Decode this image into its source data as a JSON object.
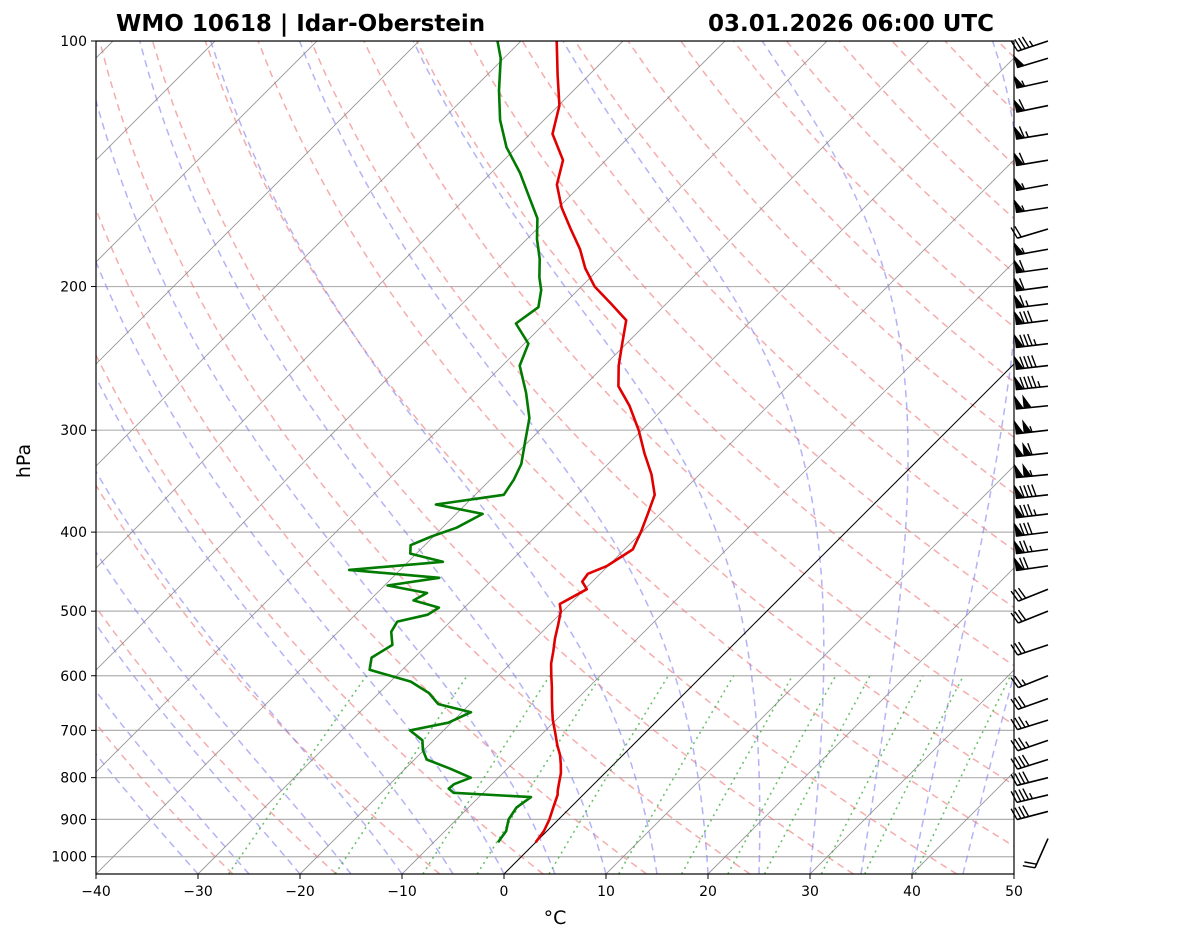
{
  "chart_data": {
    "type": "line",
    "title": "WMO 10618 | Idar-Oberstein",
    "subtitle": "03.01.2026 06:00 UTC",
    "xlabel": "°C",
    "ylabel": "hPa",
    "xlim": [
      -40,
      50
    ],
    "ylim": [
      1050,
      100
    ],
    "x_ticks": [
      -40,
      -30,
      -20,
      -10,
      0,
      10,
      20,
      30,
      40,
      50
    ],
    "x_tick_labels": [
      "−40",
      "−30",
      "−20",
      "−10",
      "0",
      "10",
      "20",
      "30",
      "40",
      "50"
    ],
    "y_ticks": [
      100,
      200,
      300,
      400,
      500,
      600,
      700,
      800,
      900,
      1000
    ],
    "y_tick_labels": [
      "100",
      "200",
      "300",
      "400",
      "500",
      "600",
      "700",
      "800",
      "900",
      "1000"
    ],
    "y_scale": "log",
    "skew_t": true,
    "grid": true,
    "background_lines": {
      "isotherms": "gray",
      "dry_adiabats": "red dashed",
      "moist_adiabats": "blue dashed",
      "mixing_ratio": "green dotted"
    },
    "colors": {
      "temperature": "#e00000",
      "dewpoint": "#007a00",
      "isotherm": "#8c8c8c",
      "dry_adiabat": "#f08080",
      "moist_adiabat": "#8080f0",
      "mixing_ratio": "#33aa33"
    },
    "series": [
      {
        "key": "temperature",
        "pressure": [
          960,
          930,
          900,
          870,
          840,
          830,
          810,
          790,
          770,
          750,
          730,
          700,
          680,
          660,
          640,
          620,
          600,
          580,
          560,
          540,
          520,
          500,
          490,
          480,
          470,
          460,
          450,
          440,
          420,
          400,
          380,
          360,
          340,
          320,
          300,
          280,
          265,
          250,
          235,
          220,
          210,
          200,
          190,
          180,
          170,
          160,
          150,
          140,
          130,
          120,
          110,
          100
        ],
        "values": [
          0.0,
          -0.3,
          -0.9,
          -1.7,
          -2.5,
          -2.9,
          -3.6,
          -4.3,
          -5.2,
          -6.2,
          -7.4,
          -9.1,
          -10.3,
          -11.4,
          -12.5,
          -13.6,
          -14.8,
          -16.0,
          -17.0,
          -18.1,
          -19.1,
          -20.2,
          -21.0,
          -20.4,
          -19.8,
          -21.0,
          -21.2,
          -20.1,
          -19.2,
          -20.1,
          -21.2,
          -22.4,
          -24.7,
          -27.5,
          -30.3,
          -33.6,
          -36.6,
          -38.6,
          -40.4,
          -42.3,
          -45.4,
          -48.7,
          -51.4,
          -53.8,
          -56.7,
          -59.7,
          -62.4,
          -64.2,
          -67.8,
          -69.9,
          -73.1,
          -76.5
        ]
      },
      {
        "key": "dewpoint",
        "pressure": [
          960,
          930,
          900,
          870,
          845,
          835,
          825,
          815,
          800,
          780,
          760,
          740,
          720,
          700,
          685,
          665,
          650,
          630,
          610,
          590,
          570,
          550,
          530,
          515,
          505,
          495,
          485,
          475,
          465,
          455,
          445,
          435,
          425,
          415,
          405,
          395,
          380,
          370,
          360,
          345,
          330,
          310,
          290,
          270,
          250,
          235,
          222,
          212,
          202,
          195,
          185,
          175,
          165,
          155,
          145,
          135,
          125,
          115,
          105,
          100
        ],
        "values": [
          -3.7,
          -4.0,
          -4.9,
          -5.3,
          -4.9,
          -12.9,
          -13.8,
          -13.7,
          -12.7,
          -15.6,
          -18.8,
          -20.1,
          -21.1,
          -23.3,
          -20.3,
          -19.1,
          -23.1,
          -25.1,
          -28.0,
          -33.2,
          -34.2,
          -33.4,
          -34.8,
          -35.2,
          -32.9,
          -32.5,
          -35.7,
          -35.1,
          -39.7,
          -35.4,
          -45.0,
          -36.6,
          -40.6,
          -41.4,
          -40.2,
          -38.6,
          -37.4,
          -42.9,
          -37.2,
          -37.7,
          -38.5,
          -40.3,
          -42.2,
          -45.0,
          -48.3,
          -49.6,
          -52.8,
          -52.2,
          -53.6,
          -55.0,
          -56.8,
          -59.0,
          -61.0,
          -64.0,
          -67.2,
          -71.0,
          -74.3,
          -77.3,
          -80.3,
          -82.3
        ]
      }
    ],
    "wind_barbs": [
      {
        "p": 100,
        "u": 45,
        "v": 15
      },
      {
        "p": 105,
        "u": 50,
        "v": 15
      },
      {
        "p": 112,
        "u": 55,
        "v": 12
      },
      {
        "p": 120,
        "u": 58,
        "v": 12
      },
      {
        "p": 130,
        "u": 62,
        "v": 10
      },
      {
        "p": 140,
        "u": 60,
        "v": 10
      },
      {
        "p": 150,
        "u": 55,
        "v": 10
      },
      {
        "p": 160,
        "u": 52,
        "v": 8
      },
      {
        "p": 170,
        "u": 20,
        "v": 6
      },
      {
        "p": 180,
        "u": 55,
        "v": 10
      },
      {
        "p": 190,
        "u": 58,
        "v": 8
      },
      {
        "p": 200,
        "u": 60,
        "v": 8
      },
      {
        "p": 210,
        "u": 65,
        "v": 8
      },
      {
        "p": 220,
        "u": 80,
        "v": 10
      },
      {
        "p": 235,
        "u": 85,
        "v": 10
      },
      {
        "p": 250,
        "u": 88,
        "v": 10
      },
      {
        "p": 265,
        "u": 95,
        "v": 10
      },
      {
        "p": 280,
        "u": 100,
        "v": 10
      },
      {
        "p": 300,
        "u": 105,
        "v": 12
      },
      {
        "p": 320,
        "u": 110,
        "v": 12
      },
      {
        "p": 340,
        "u": 105,
        "v": 10
      },
      {
        "p": 360,
        "u": 90,
        "v": 10
      },
      {
        "p": 380,
        "u": 85,
        "v": 10
      },
      {
        "p": 400,
        "u": 80,
        "v": 10
      },
      {
        "p": 420,
        "u": 75,
        "v": 10
      },
      {
        "p": 440,
        "u": 70,
        "v": 10
      },
      {
        "p": 470,
        "u": 30,
        "v": 12
      },
      {
        "p": 500,
        "u": 30,
        "v": 12
      },
      {
        "p": 550,
        "u": 30,
        "v": 10
      },
      {
        "p": 600,
        "u": 25,
        "v": 10
      },
      {
        "p": 640,
        "u": 28,
        "v": 10
      },
      {
        "p": 680,
        "u": 32,
        "v": 10
      },
      {
        "p": 720,
        "u": 35,
        "v": 12
      },
      {
        "p": 760,
        "u": 38,
        "v": 12
      },
      {
        "p": 800,
        "u": 40,
        "v": 10
      },
      {
        "p": 840,
        "u": 42,
        "v": 10
      },
      {
        "p": 880,
        "u": 38,
        "v": 10
      },
      {
        "p": 950,
        "u": 8,
        "v": 18
      }
    ]
  }
}
